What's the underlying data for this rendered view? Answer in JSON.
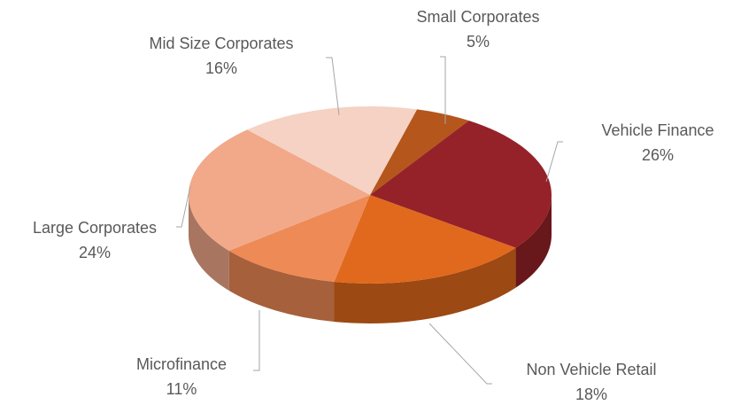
{
  "chart_data": {
    "type": "pie",
    "categories": [
      "Small Corporates",
      "Vehicle Finance",
      "Non Vehicle Retail",
      "Microfinance",
      "Large Corporates",
      "Mid Size Corporates"
    ],
    "values": [
      5,
      26,
      18,
      11,
      24,
      16
    ],
    "value_labels": [
      "5%",
      "26%",
      "18%",
      "11%",
      "24%",
      "16%"
    ],
    "colors": [
      "#b5561c",
      "#952228",
      "#e0691d",
      "#ee8a55",
      "#f1a98a",
      "#f5d2c4"
    ]
  }
}
